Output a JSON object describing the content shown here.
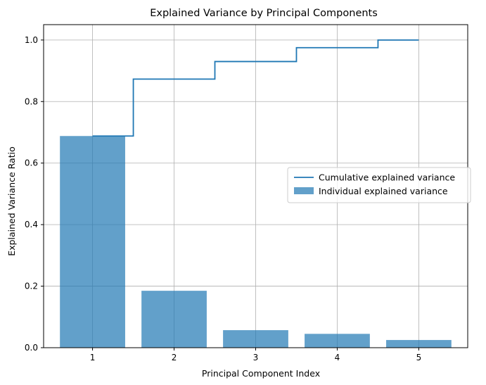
{
  "chart_data": {
    "type": "bar",
    "title": "Explained Variance by Principal Components",
    "xlabel": "Principal Component Index",
    "ylabel": "Explained Variance Ratio",
    "categories": [
      "1",
      "2",
      "3",
      "4",
      "5"
    ],
    "x": [
      1,
      2,
      3,
      4,
      5
    ],
    "xlim": [
      0.4,
      5.6
    ],
    "ylim": [
      0,
      1.05
    ],
    "yticks": [
      0.0,
      0.2,
      0.4,
      0.6,
      0.8,
      1.0
    ],
    "ytick_labels": [
      "0.0",
      "0.2",
      "0.4",
      "0.6",
      "0.8",
      "1.0"
    ],
    "grid": true,
    "legend_position": "center-right",
    "series": [
      {
        "name": "Individual explained variance",
        "type": "bar",
        "color": "#1f77b4",
        "opacity": 0.7,
        "values": [
          0.688,
          0.185,
          0.057,
          0.045,
          0.025
        ]
      },
      {
        "name": "Cumulative explained variance",
        "type": "step",
        "color": "#1f77b4",
        "values": [
          0.688,
          0.873,
          0.93,
          0.975,
          1.0
        ]
      }
    ]
  }
}
